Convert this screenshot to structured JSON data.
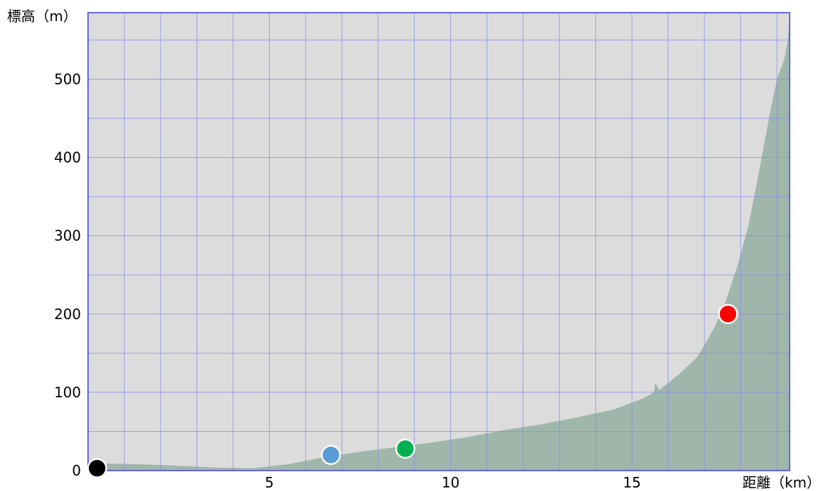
{
  "chart_data": {
    "type": "area",
    "ylabel": "標高（m）",
    "xlabel": "距離（km）",
    "xlim": [
      0,
      19.35
    ],
    "ylim": [
      0,
      585
    ],
    "x_ticks": [
      {
        "value": 5,
        "label": "5"
      },
      {
        "value": 10,
        "label": "10"
      },
      {
        "value": 15,
        "label": "15"
      }
    ],
    "y_ticks": [
      {
        "value": 0,
        "label": "0"
      },
      {
        "value": 100,
        "label": "100"
      },
      {
        "value": 200,
        "label": "200"
      },
      {
        "value": 300,
        "label": "300"
      },
      {
        "value": 400,
        "label": "400"
      },
      {
        "value": 500,
        "label": "500"
      }
    ],
    "x_grid_step": 1,
    "y_grid_step": 50,
    "grid": true,
    "colors": {
      "plot_background": "#dcdcdc",
      "grid_line": "#8888ee",
      "frame": "#6666dd",
      "area_fill": "#9fb7ab"
    },
    "profile": {
      "x": [
        0,
        0.5,
        1.5,
        2.5,
        3.5,
        4.5,
        5.5,
        6.5,
        7.5,
        8.5,
        9.5,
        10.5,
        11.5,
        12.5,
        13.5,
        14.5,
        15.3,
        15.6,
        15.65,
        15.75,
        16.3,
        16.8,
        17.0,
        17.3,
        17.6,
        17.9,
        18.2,
        18.5,
        18.8,
        19.0,
        19.2,
        19.3,
        19.35
      ],
      "y": [
        9,
        9,
        8,
        6,
        4,
        3,
        8,
        17,
        24,
        30,
        36,
        43,
        52,
        59,
        68,
        78,
        92,
        100,
        112,
        103,
        123,
        145,
        160,
        185,
        218,
        260,
        310,
        380,
        455,
        500,
        525,
        550,
        580
      ]
    },
    "markers": [
      {
        "x": 0.25,
        "y": 3,
        "color": "#000000"
      },
      {
        "x": 6.7,
        "y": 20,
        "color": "#5b9bd5"
      },
      {
        "x": 8.75,
        "y": 28,
        "color": "#00b050"
      },
      {
        "x": 17.65,
        "y": 200,
        "color": "#ff0000"
      }
    ]
  }
}
